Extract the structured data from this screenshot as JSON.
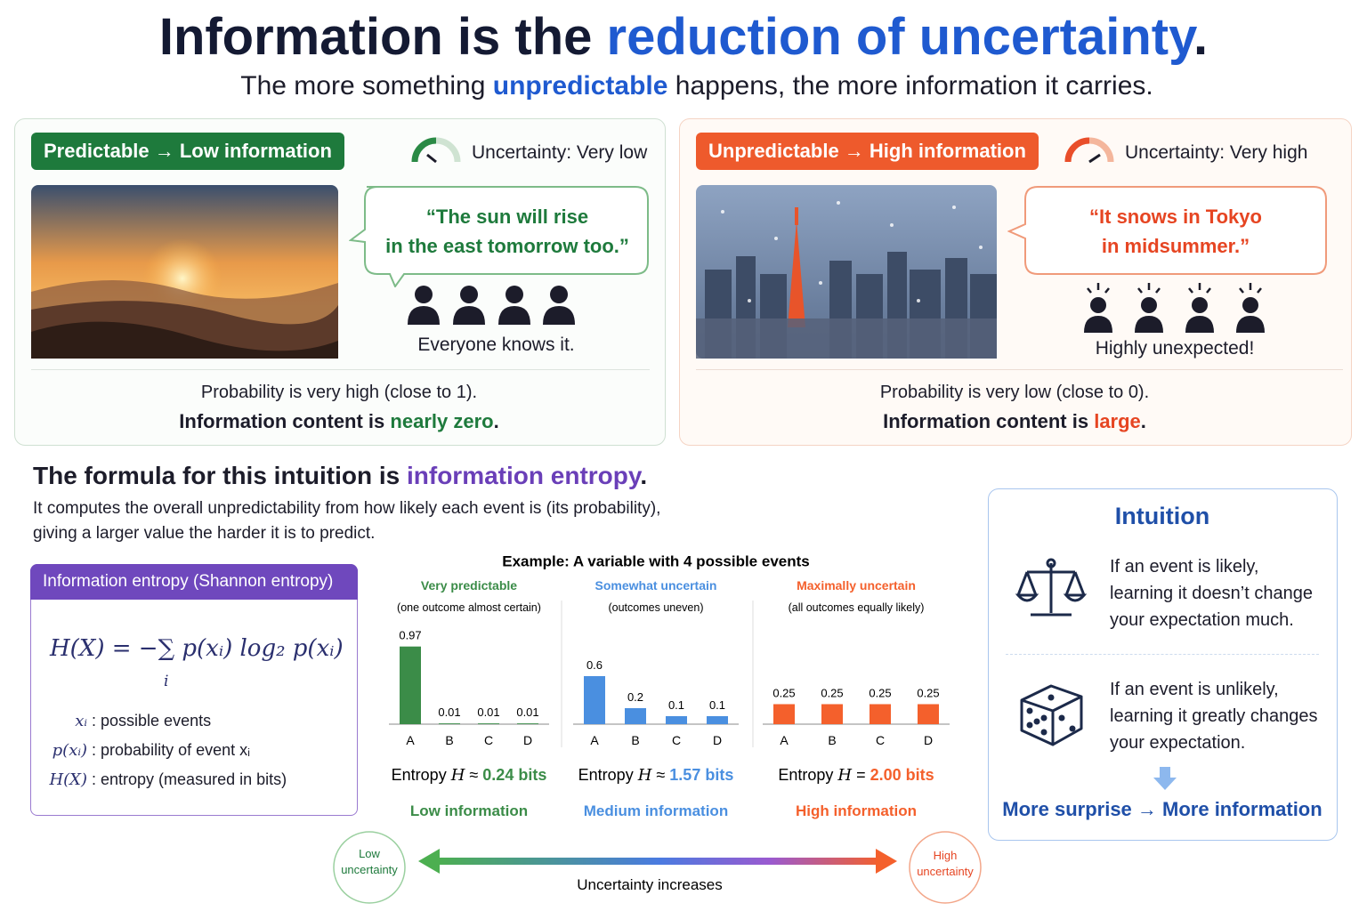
{
  "header": {
    "title_plain": "Information is the ",
    "title_highlight": "reduction of uncertainty",
    "title_end": ".",
    "subtitle_start": "The more something ",
    "subtitle_highlight": "unpredictable",
    "subtitle_end": " happens, the more information it carries."
  },
  "panels": [
    {
      "badge": "Predictable → Low information",
      "gauge_label": "Uncertainty: Very low",
      "quote_line1": "“The sun will rise",
      "quote_line2": "in the east tomorrow too.”",
      "people_caption": "Everyone knows it.",
      "probability": "Probability is very high (close to 1).",
      "info_start": "Information content is ",
      "info_highlight": "nearly zero",
      "info_end": "."
    },
    {
      "badge": "Unpredictable → High information",
      "gauge_label": "Uncertainty: Very high",
      "quote_line1": "“It snows in Tokyo",
      "quote_line2": "in midsummer.”",
      "people_caption": "Highly unexpected!",
      "probability": "Probability is very low (close to 0).",
      "info_start": "Information content is ",
      "info_highlight": "large",
      "info_end": "."
    }
  ],
  "formula_section": {
    "heading_start": "The formula for this intuition is ",
    "heading_highlight": "information entropy",
    "heading_end": ".",
    "desc_line1": "It computes the overall unpredictability from how likely each event is (its probability),",
    "desc_line2": "giving a larger value the harder it is to predict.",
    "box_title": "Information entropy (Shannon entropy)",
    "formula": "H(X) = −∑ p(xᵢ) log₂ p(xᵢ)",
    "sum_index": "i",
    "legend": [
      {
        "symbol": "xᵢ",
        "text": ": possible events"
      },
      {
        "symbol": "p(xᵢ)",
        "text": ": probability of event xᵢ"
      },
      {
        "symbol": "H(X)",
        "text": ": entropy (measured in bits)"
      }
    ]
  },
  "example_title": "Example: A variable with 4 possible events",
  "chart_data": [
    {
      "type": "bar",
      "title": "Very predictable",
      "subtitle": "(one outcome almost certain)",
      "categories": [
        "A",
        "B",
        "C",
        "D"
      ],
      "values": [
        0.97,
        0.01,
        0.01,
        0.01
      ],
      "color": "#3b8c48",
      "entropy_prefix": "Entropy ",
      "entropy_symbol": "H",
      "entropy_relation": " ≈ ",
      "entropy_value": "0.24 bits",
      "level": "Low information"
    },
    {
      "type": "bar",
      "title": "Somewhat uncertain",
      "subtitle": "(outcomes uneven)",
      "categories": [
        "A",
        "B",
        "C",
        "D"
      ],
      "values": [
        0.6,
        0.2,
        0.1,
        0.1
      ],
      "color": "#4a8fe0",
      "entropy_prefix": "Entropy ",
      "entropy_symbol": "H",
      "entropy_relation": " ≈ ",
      "entropy_value": "1.57 bits",
      "level": "Medium information"
    },
    {
      "type": "bar",
      "title": "Maximally uncertain",
      "subtitle": "(all outcomes equally likely)",
      "categories": [
        "A",
        "B",
        "C",
        "D"
      ],
      "values": [
        0.25,
        0.25,
        0.25,
        0.25
      ],
      "color": "#f4602c",
      "entropy_prefix": "Entropy ",
      "entropy_symbol": "H",
      "entropy_relation": " = ",
      "entropy_value": "2.00 bits",
      "level": "High information"
    }
  ],
  "scale": {
    "low": [
      "Low",
      "uncertainty"
    ],
    "high": [
      "High",
      "uncertainty"
    ],
    "axis_label": "Uncertainty increases"
  },
  "intuition": {
    "title": "Intuition",
    "items": [
      {
        "lines": [
          "If an event is likely,",
          "learning it doesn’t change",
          "your expectation much."
        ]
      },
      {
        "lines": [
          "If an event is unlikely,",
          "learning it greatly changes",
          "your expectation."
        ]
      }
    ],
    "conclusion": "More surprise → More information"
  }
}
